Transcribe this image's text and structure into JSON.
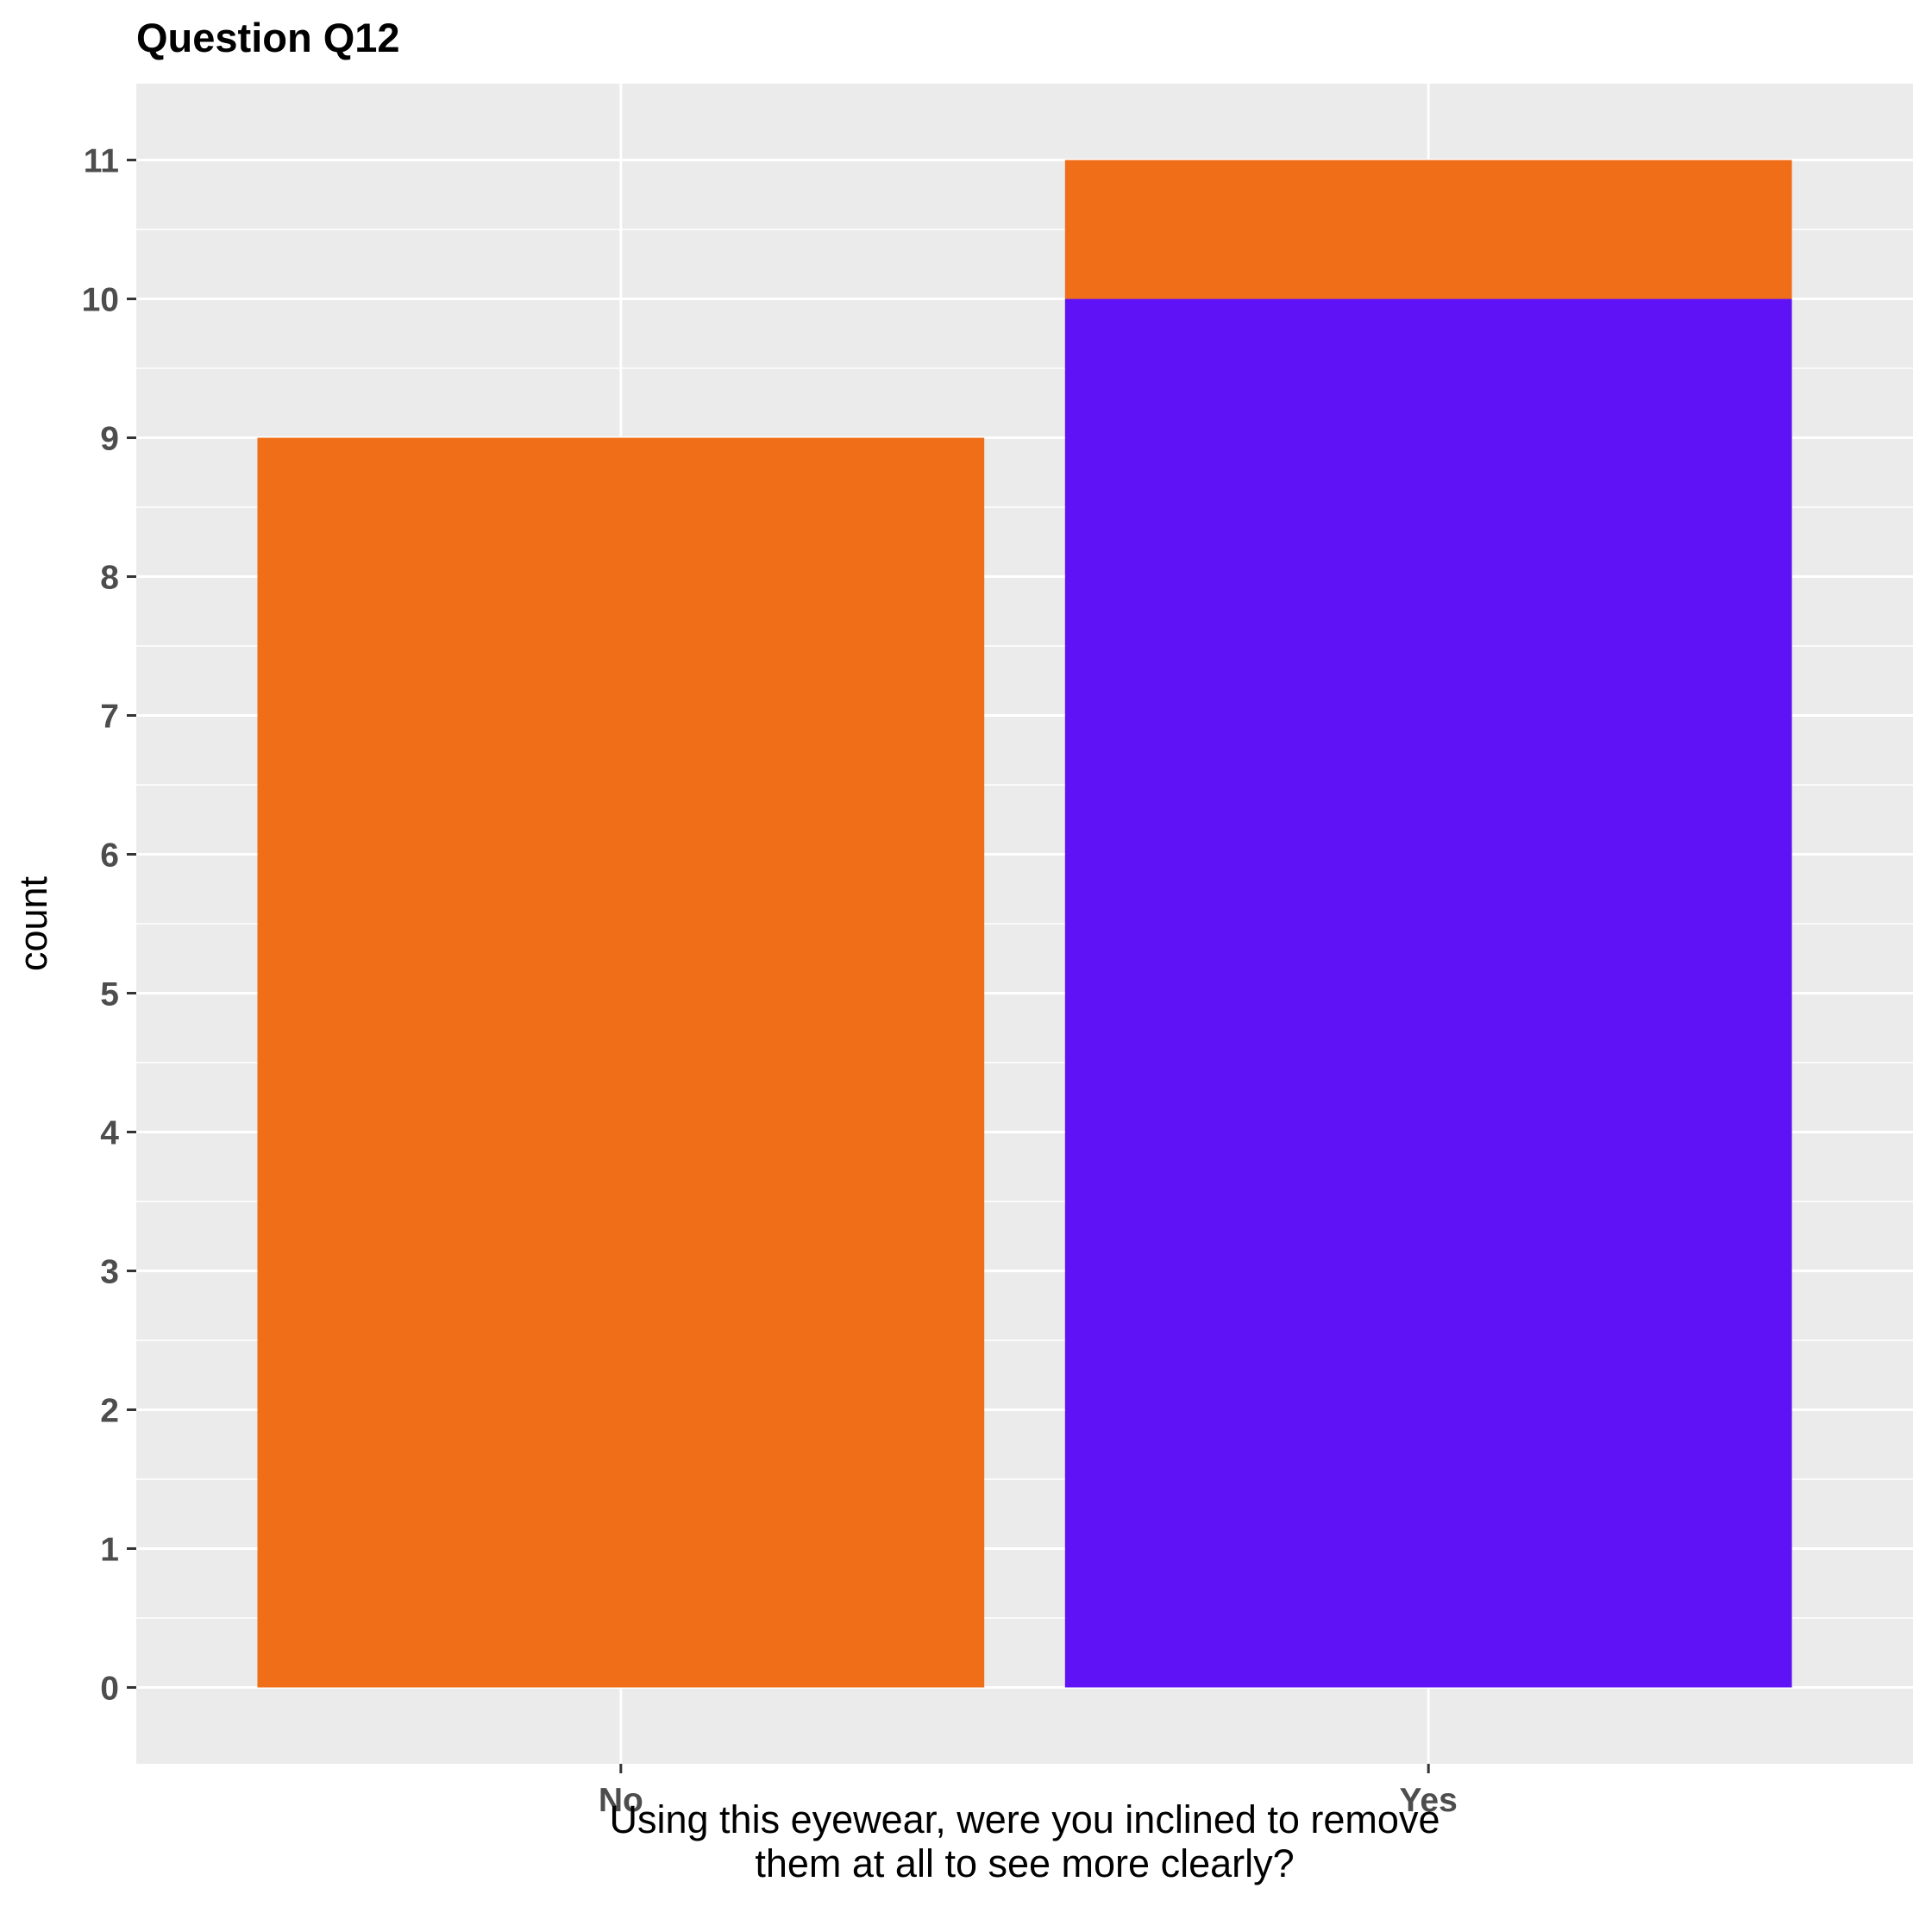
{
  "chart_data": {
    "type": "bar",
    "stacked": true,
    "title": "Question Q12",
    "xlabel_lines": [
      "Using this eyewear, were you inclined to remove",
      "them at all to see more clearly?"
    ],
    "ylabel": "count",
    "categories": [
      "No",
      "Yes"
    ],
    "series": [
      {
        "color": "#5e12f5",
        "values": [
          0,
          10
        ]
      },
      {
        "color": "#f06e18",
        "values": [
          9,
          1
        ]
      }
    ],
    "ylim": [
      -0.55,
      11.55
    ],
    "yticks": [
      0,
      1,
      2,
      3,
      4,
      5,
      6,
      7,
      8,
      9,
      10,
      11
    ],
    "grid": true,
    "legend": "none",
    "panel_background": "#ebebeb",
    "gridline_color": "#ffffff"
  }
}
